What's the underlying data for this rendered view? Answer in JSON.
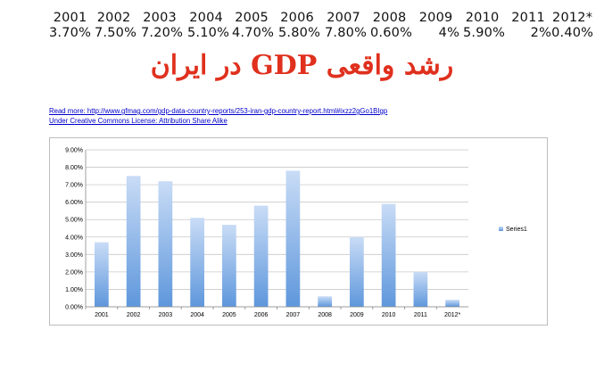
{
  "headline": "رشد واقعی GDP در ایران",
  "growth_table": {
    "years": [
      "2001",
      "2002",
      "2003",
      "2004",
      "2005",
      "2006",
      "2007",
      "2008",
      "2009",
      "2010",
      "2011",
      "2012*"
    ],
    "values": [
      "3.70%",
      "7.50%",
      "7.20%",
      "5.10%",
      "4.70%",
      "5.80%",
      "7.80%",
      "0.60%",
      "4%",
      "5.90%",
      "2%",
      "0.40%"
    ]
  },
  "links": {
    "read_more": "Read more: http://www.gfmag.com/gdp-data-country-reports/253-iran-gdp-country-report.html#ixzz2gGo1BIgp",
    "license": "Under Creative Commons License: Attribution Share Alike"
  },
  "chart_data": {
    "type": "bar",
    "categories": [
      "2001",
      "2002",
      "2003",
      "2004",
      "2005",
      "2006",
      "2007",
      "2008",
      "2009",
      "2010",
      "2011",
      "2012*"
    ],
    "series": [
      {
        "name": "Series1",
        "values": [
          3.7,
          7.5,
          7.2,
          5.1,
          4.7,
          5.8,
          7.8,
          0.6,
          4.0,
          5.9,
          2.0,
          0.4
        ]
      }
    ],
    "y_ticks": [
      "0.00%",
      "1.00%",
      "2.00%",
      "3.00%",
      "4.00%",
      "5.00%",
      "6.00%",
      "7.00%",
      "8.00%",
      "9.00%"
    ],
    "ylim": [
      0,
      9
    ],
    "grid": true,
    "legend_position": "right",
    "bar_color_top": "#c9dcf6",
    "bar_color_bottom": "#5e97dc",
    "grid_color": "#c8c8c8"
  }
}
